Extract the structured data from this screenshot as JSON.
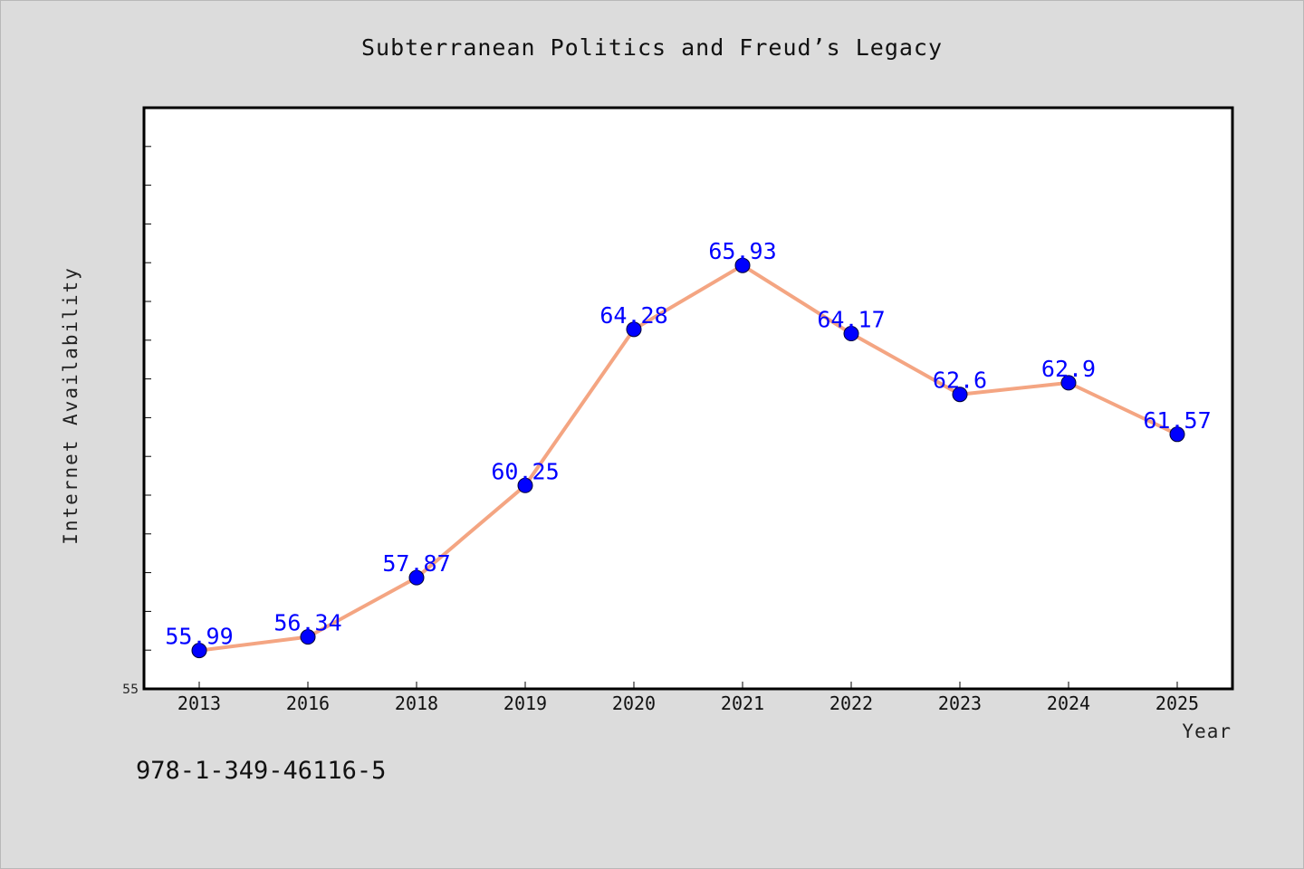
{
  "page": {
    "footer_code": "978-1-349-46116-5"
  },
  "chart_data": {
    "type": "line",
    "title": "Subterranean Politics and Freud’s Legacy",
    "xlabel": "Year",
    "ylabel": "Internet Availability",
    "categories": [
      "2013",
      "2016",
      "2018",
      "2019",
      "2020",
      "2021",
      "2022",
      "2023",
      "2024",
      "2025"
    ],
    "values": [
      55.99,
      56.34,
      57.87,
      60.25,
      64.28,
      65.93,
      64.17,
      62.6,
      62.9,
      61.57
    ],
    "data_labels": [
      "55.99",
      "56.34",
      "57.87",
      "60.25",
      "64.28",
      "65.93",
      "64.17",
      "62.6",
      "62.9",
      "61.57"
    ],
    "y_tick_label": "55",
    "ylim": [
      55,
      70
    ],
    "grid": false,
    "legend": "none",
    "colors": {
      "line": "#f4a582",
      "marker": "#0000ff",
      "data_label": "#0000ff",
      "plot_background": "#ffffff",
      "page_background": "#dcdcdc"
    }
  }
}
